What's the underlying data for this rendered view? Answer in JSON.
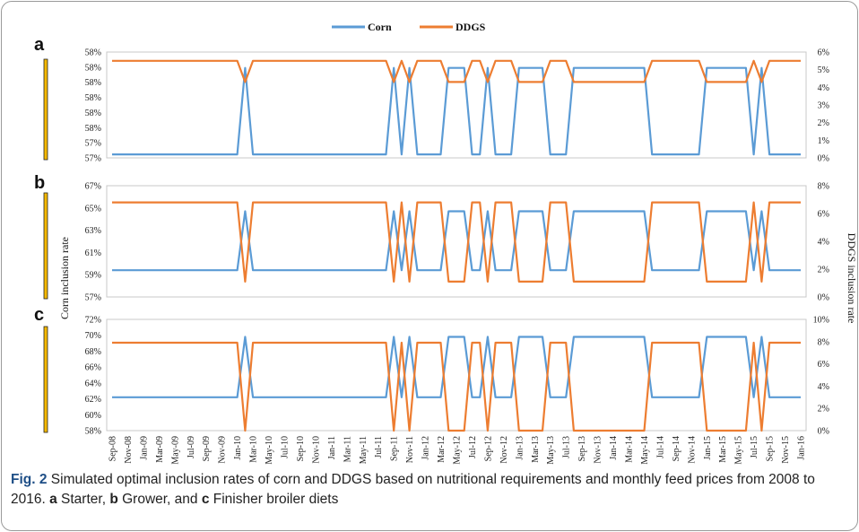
{
  "legend": [
    {
      "name": "Corn",
      "color": "#5b9bd5"
    },
    {
      "name": "DDGS",
      "color": "#ed7d31"
    }
  ],
  "caption": {
    "figure_label": "Fig. 2",
    "text_1": " Simulated optimal inclusion rates of corn and DDGS based on nutritional requirements and monthly feed prices from 2008 to 2016. ",
    "a": "a",
    "a_text": " Starter, ",
    "b": "b",
    "b_text": " Grower, and ",
    "c": "c",
    "c_text": " Finisher broiler diets"
  },
  "chart_data": {
    "type": "line",
    "x_tick_labels": [
      "Sep-08",
      "Nov-08",
      "Jan-09",
      "Mar-09",
      "May-09",
      "Jul-09",
      "Sep-09",
      "Nov-09",
      "Jan-10",
      "Mar-10",
      "May-10",
      "Jul-10",
      "Sep-10",
      "Nov-10",
      "Jan-11",
      "Mar-11",
      "May-11",
      "Jul-11",
      "Sep-11",
      "Nov-11",
      "Jan-12",
      "Mar-12",
      "May-12",
      "Jul-12",
      "Sep-12",
      "Nov-12",
      "Jan-13",
      "Mar-13",
      "May-13",
      "Jul-13",
      "Sep-13",
      "Nov-13",
      "Jan-14",
      "Mar-14",
      "May-14",
      "Jul-14",
      "Sep-14",
      "Nov-14",
      "Jan-15",
      "Mar-15",
      "May-15",
      "Jul-15",
      "Sep-15",
      "Nov-15",
      "Jan-16"
    ],
    "corn_high_months": [
      "2010-02",
      "2011-09",
      "2011-11",
      "2012-04",
      "2012-05",
      "2012-06",
      "2012-09",
      "2013-01",
      "2013-02",
      "2013-03",
      "2013-04",
      "2013-08",
      "2013-09",
      "2013-10",
      "2013-11",
      "2013-12",
      "2014-01",
      "2014-02",
      "2014-03",
      "2014-04",
      "2014-05",
      "2015-01",
      "2015-02",
      "2015-03",
      "2015-04",
      "2015-05",
      "2015-06",
      "2015-08"
    ],
    "ylabel_left": "Corn inclusion rate",
    "ylabel_right": "DDGS inclusion rate",
    "panels": [
      {
        "letter": "a",
        "left_ticks": [
          "58%",
          "58%",
          "58%",
          "58%",
          "58%",
          "58%",
          "57%",
          "57%"
        ],
        "right_ticks": [
          "6%",
          "5%",
          "4%",
          "3%",
          "2%",
          "1%",
          "0%"
        ],
        "right_range": [
          0,
          6
        ],
        "corn_low": 0.2,
        "corn_high": 5.1,
        "ddgs_low": 4.3,
        "ddgs_high": 5.5
      },
      {
        "letter": "b",
        "left_ticks": [
          "67%",
          "65%",
          "63%",
          "61%",
          "59%",
          "57%"
        ],
        "left_range": [
          57,
          67
        ],
        "corn_low": 59.4,
        "corn_high": 64.7,
        "right_ticks": [
          "8%",
          "6%",
          "4%",
          "2%",
          "0%"
        ],
        "right_range": [
          0,
          8
        ],
        "ddgs_low": 1.1,
        "ddgs_high": 6.8
      },
      {
        "letter": "c",
        "left_ticks": [
          "72%",
          "70%",
          "68%",
          "66%",
          "64%",
          "62%",
          "60%",
          "58%"
        ],
        "left_range": [
          58,
          72
        ],
        "corn_low": 62.2,
        "corn_high": 69.8,
        "right_ticks": [
          "10%",
          "8%",
          "6%",
          "4%",
          "2%",
          "0%"
        ],
        "right_range": [
          0,
          10
        ],
        "ddgs_low": 0,
        "ddgs_high": 7.9
      }
    ]
  }
}
